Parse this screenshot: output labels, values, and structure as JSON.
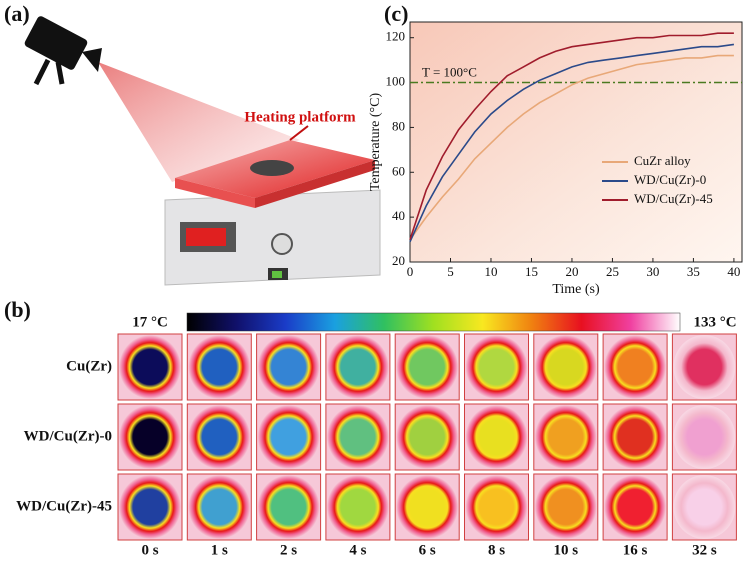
{
  "panel_a": {
    "label": "(a)",
    "annotation": "Heating platform"
  },
  "panel_b": {
    "label": "(b)",
    "colorbar_min_label": "17 °C",
    "colorbar_max_label": "133 °C",
    "colorbar_colors": [
      "#000000",
      "#10106a",
      "#1a3cc8",
      "#1aa0e0",
      "#30c060",
      "#a0e020",
      "#f8e820",
      "#f08010",
      "#e81020",
      "#f040a0",
      "#ffffff"
    ],
    "rows": [
      {
        "name": "Cu(Zr)",
        "center_colors": [
          "#0c0c5a",
          "#2060c0",
          "#3484d4",
          "#40b0a0",
          "#70c860",
          "#b0d840",
          "#d8d820",
          "#f08020",
          "#e03060"
        ]
      },
      {
        "name": "WD/Cu(Zr)-0",
        "center_colors": [
          "#060028",
          "#2060c0",
          "#40a0e0",
          "#60c080",
          "#a0d040",
          "#e8e020",
          "#f0a020",
          "#e03020",
          "#f0a0d0"
        ]
      },
      {
        "name": "WD/Cu(Zr)-45",
        "center_colors": [
          "#2040a0",
          "#40a0d0",
          "#50c080",
          "#a0d840",
          "#f0e020",
          "#f8c020",
          "#f09020",
          "#f02030",
          "#f8d0e8"
        ]
      }
    ],
    "times": [
      "0 s",
      "1 s",
      "2 s",
      "4 s",
      "6 s",
      "8 s",
      "10 s",
      "16 s",
      "32 s"
    ]
  },
  "panel_c": {
    "label": "(c)"
  },
  "chart_data": {
    "type": "line",
    "x_label": "Time (s)",
    "y_label": "Temperature (°C)",
    "x": [
      0,
      2,
      4,
      6,
      8,
      10,
      12,
      14,
      16,
      18,
      20,
      22,
      24,
      26,
      28,
      30,
      32,
      34,
      36,
      38,
      40
    ],
    "series": [
      {
        "name": "CuZr alloy",
        "color": "#e8a878",
        "values": [
          30,
          40,
          49,
          57,
          66,
          73,
          80,
          86,
          91,
          95,
          99,
          102,
          104,
          106,
          108,
          109,
          110,
          111,
          111,
          112,
          112
        ]
      },
      {
        "name": "WD/Cu(Zr)-0",
        "color": "#2b4a8a",
        "values": [
          29,
          45,
          58,
          68,
          78,
          86,
          92,
          97,
          101,
          104,
          107,
          109,
          110,
          111,
          112,
          113,
          114,
          115,
          116,
          116,
          117
        ]
      },
      {
        "name": "WD/Cu(Zr)-45",
        "color": "#a01c2c",
        "values": [
          30,
          52,
          67,
          79,
          88,
          96,
          103,
          107,
          111,
          114,
          116,
          117,
          118,
          119,
          120,
          120,
          121,
          121,
          121,
          122,
          122
        ]
      }
    ],
    "reference_line": {
      "value": 100,
      "label": "T = 100°C",
      "color": "#4a7a20"
    },
    "xlim": [
      0,
      41
    ],
    "ylim": [
      20,
      127
    ],
    "xticks": [
      0,
      5,
      10,
      15,
      20,
      25,
      30,
      35,
      40
    ],
    "yticks": [
      20,
      40,
      60,
      80,
      100,
      120
    ],
    "legend": "lower right"
  }
}
